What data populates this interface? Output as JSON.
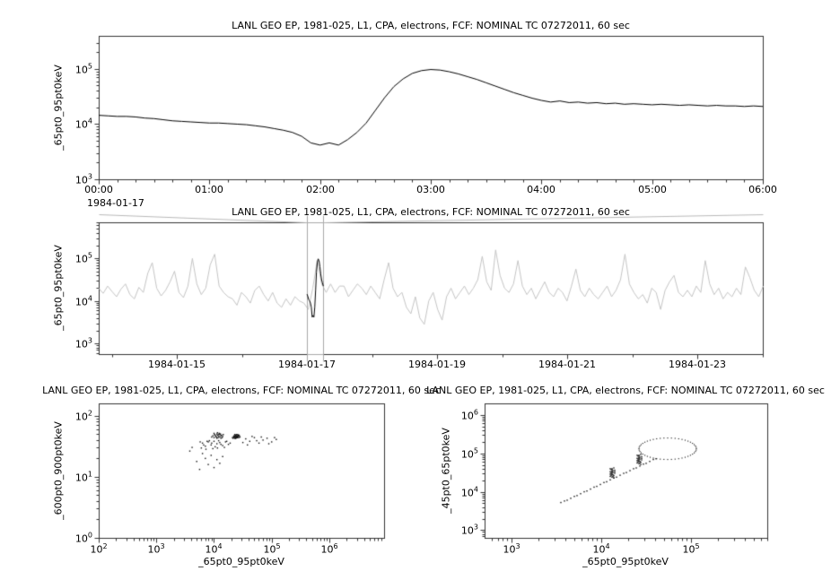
{
  "window": {
    "background": "#ffffff"
  },
  "colors": {
    "axis": "#333333",
    "series": "#000000",
    "context_series": "#c4c4c4",
    "selection": "#a8a8a8",
    "connector": "#b8b8b8",
    "scatter": "#111111"
  },
  "chart_data": [
    {
      "type": "line",
      "title": "LANL GEO EP, 1981-025, L1, CPA, electrons, FCF: NOMINAL TC 07272011, 60 sec",
      "ylabel": "_65pt0_95pt0keV",
      "xlabel": "",
      "x_axis": {
        "unit": "time-of-day",
        "date_label": "1984-01-17",
        "tick_labels": [
          "00:00",
          "01:00",
          "02:00",
          "03:00",
          "04:00",
          "05:00",
          "06:00"
        ],
        "tick_hours": [
          0,
          1,
          2,
          3,
          4,
          5,
          6
        ],
        "range_hours": [
          0,
          6
        ],
        "minor_step_hours": 0.16667
      },
      "y_axis": {
        "scale": "log",
        "range_log10": [
          3.0,
          5.6
        ],
        "tick_exponents": [
          3,
          4,
          5
        ]
      },
      "series": {
        "x_start_hours": 0,
        "x_step_hours": 0.083333,
        "log10_values": [
          4.16,
          4.15,
          4.14,
          4.14,
          4.13,
          4.11,
          4.1,
          4.08,
          4.06,
          4.05,
          4.04,
          4.03,
          4.02,
          4.02,
          4.01,
          4.0,
          3.99,
          3.97,
          3.95,
          3.92,
          3.89,
          3.85,
          3.78,
          3.66,
          3.62,
          3.66,
          3.62,
          3.72,
          3.85,
          4.02,
          4.25,
          4.48,
          4.68,
          4.82,
          4.92,
          4.97,
          4.99,
          4.98,
          4.95,
          4.91,
          4.86,
          4.81,
          4.75,
          4.69,
          4.63,
          4.57,
          4.52,
          4.47,
          4.43,
          4.4,
          4.42,
          4.39,
          4.4,
          4.38,
          4.39,
          4.37,
          4.38,
          4.36,
          4.37,
          4.36,
          4.35,
          4.36,
          4.35,
          4.34,
          4.35,
          4.34,
          4.33,
          4.34,
          4.33,
          4.33,
          4.32,
          4.33,
          4.32
        ]
      }
    },
    {
      "type": "line",
      "title": "LANL GEO EP, 1981-025, L1, CPA, electrons, FCF: NOMINAL TC 07272011, 60 sec",
      "ylabel": "_65pt0_95pt0keV",
      "xlabel": "",
      "x_axis": {
        "unit": "date",
        "tick_labels": [
          "1984-01-15",
          "1984-01-17",
          "1984-01-19",
          "1984-01-21",
          "1984-01-23"
        ],
        "tick_days": [
          15,
          17,
          19,
          21,
          23
        ],
        "range_days": [
          13.8,
          24.0
        ],
        "minor_step_days": 1
      },
      "y_axis": {
        "scale": "log",
        "range_log10": [
          2.75,
          5.85
        ],
        "tick_exponents": [
          3,
          4,
          5
        ]
      },
      "series": {
        "x_start_days": 13.8,
        "x_step_days": 0.0685,
        "log10_values": [
          4.3,
          4.18,
          4.35,
          4.22,
          4.1,
          4.28,
          4.4,
          4.15,
          4.05,
          4.32,
          4.2,
          4.65,
          4.9,
          4.3,
          4.12,
          4.25,
          4.45,
          4.7,
          4.2,
          4.08,
          4.35,
          5.0,
          4.4,
          4.15,
          4.3,
          4.85,
          5.1,
          4.35,
          4.2,
          4.1,
          4.05,
          3.9,
          4.2,
          4.1,
          3.95,
          4.25,
          4.35,
          4.15,
          4.0,
          4.2,
          3.95,
          3.85,
          4.05,
          3.9,
          4.1,
          4.0,
          3.95,
          3.8,
          4.3,
          4.95,
          4.4,
          4.2,
          4.4,
          4.2,
          4.35,
          4.35,
          4.1,
          4.25,
          4.4,
          4.3,
          4.15,
          4.35,
          4.2,
          4.05,
          4.5,
          4.9,
          4.3,
          4.1,
          4.2,
          3.85,
          3.7,
          4.1,
          3.6,
          3.45,
          4.0,
          4.2,
          3.8,
          3.55,
          4.1,
          4.3,
          4.05,
          4.2,
          4.35,
          4.15,
          4.3,
          4.5,
          5.05,
          4.45,
          4.25,
          5.2,
          4.6,
          4.3,
          4.2,
          4.4,
          4.95,
          4.35,
          4.15,
          4.3,
          4.05,
          4.25,
          4.45,
          4.2,
          4.1,
          4.3,
          4.2,
          4.0,
          4.35,
          4.75,
          4.25,
          4.1,
          4.3,
          4.15,
          4.05,
          4.2,
          4.35,
          4.1,
          4.25,
          4.5,
          5.1,
          4.4,
          4.2,
          4.05,
          4.15,
          3.95,
          4.3,
          4.2,
          3.8,
          4.25,
          4.45,
          4.6,
          4.2,
          4.1,
          4.25,
          4.1,
          4.35,
          4.2,
          4.95,
          4.4,
          4.15,
          4.3,
          4.05,
          4.2,
          4.1,
          4.3,
          4.15,
          4.8,
          4.55,
          4.25,
          4.1,
          4.35
        ]
      },
      "highlight_series": {
        "x_start_days": 17.0,
        "x_step_days": 0.01316,
        "log10_values": [
          4.16,
          4.1,
          4.03,
          4.0,
          3.95,
          3.85,
          3.62,
          3.66,
          3.62,
          3.85,
          4.25,
          4.68,
          4.92,
          4.99,
          4.95,
          4.81,
          4.63,
          4.5,
          4.42,
          4.35
        ]
      },
      "selection_box_days": [
        17.0,
        17.25
      ]
    },
    {
      "type": "scatter",
      "title": "LANL GEO EP, 1981-025, L1, CPA, electrons, FCF: NOMINAL TC 07272011, 60 sec",
      "ylabel": "_600pt0_900pt0keV",
      "xlabel": "_65pt0_95pt0keV",
      "x_axis": {
        "scale": "log",
        "range_log10": [
          2.0,
          6.95
        ],
        "tick_exponents": [
          2,
          3,
          4,
          5,
          6
        ]
      },
      "y_axis": {
        "scale": "log",
        "range_log10": [
          0.0,
          2.2
        ],
        "tick_exponents": [
          0,
          1,
          2
        ]
      },
      "points_log10": [
        [
          4.32,
          1.64
        ],
        [
          4.35,
          1.67
        ],
        [
          4.38,
          1.66
        ],
        [
          4.4,
          1.65
        ],
        [
          4.42,
          1.68
        ],
        [
          4.36,
          1.63
        ],
        [
          4.39,
          1.69
        ],
        [
          4.41,
          1.66
        ],
        [
          4.37,
          1.65
        ],
        [
          4.43,
          1.64
        ],
        [
          4.34,
          1.66
        ],
        [
          4.38,
          1.68
        ],
        [
          4.4,
          1.67
        ],
        [
          4.36,
          1.66
        ],
        [
          4.39,
          1.64
        ],
        [
          4.42,
          1.66
        ],
        [
          4.35,
          1.65
        ],
        [
          4.37,
          1.68
        ],
        [
          4.41,
          1.69
        ],
        [
          4.33,
          1.63
        ],
        [
          4.44,
          1.67
        ],
        [
          4.38,
          1.63
        ],
        [
          4.36,
          1.69
        ],
        [
          4.4,
          1.64
        ],
        [
          4.43,
          1.68
        ],
        [
          4.34,
          1.64
        ],
        [
          4.39,
          1.66
        ],
        [
          4.41,
          1.64
        ],
        [
          4.37,
          1.63
        ],
        [
          4.45,
          1.65
        ],
        [
          4.02,
          1.68
        ],
        [
          4.05,
          1.7
        ],
        [
          4.08,
          1.66
        ],
        [
          4.1,
          1.69
        ],
        [
          4.0,
          1.64
        ],
        [
          4.06,
          1.72
        ],
        [
          4.12,
          1.67
        ],
        [
          4.04,
          1.65
        ],
        [
          4.09,
          1.71
        ],
        [
          4.01,
          1.69
        ],
        [
          4.07,
          1.64
        ],
        [
          4.11,
          1.7
        ],
        [
          4.03,
          1.66
        ],
        [
          4.13,
          1.68
        ],
        [
          4.05,
          1.63
        ],
        [
          4.15,
          1.66
        ],
        [
          3.98,
          1.67
        ],
        [
          4.08,
          1.69
        ],
        [
          4.14,
          1.64
        ],
        [
          4.0,
          1.71
        ],
        [
          4.1,
          1.65
        ],
        [
          4.06,
          1.68
        ],
        [
          4.16,
          1.69
        ],
        [
          3.96,
          1.65
        ],
        [
          4.12,
          1.63
        ],
        [
          3.8,
          1.55
        ],
        [
          3.85,
          1.5
        ],
        [
          3.9,
          1.57
        ],
        [
          3.95,
          1.52
        ],
        [
          4.0,
          1.58
        ],
        [
          4.05,
          1.54
        ],
        [
          4.1,
          1.56
        ],
        [
          4.15,
          1.51
        ],
        [
          4.2,
          1.57
        ],
        [
          4.25,
          1.53
        ],
        [
          3.78,
          1.47
        ],
        [
          3.88,
          1.58
        ],
        [
          3.98,
          1.46
        ],
        [
          4.08,
          1.59
        ],
        [
          4.18,
          1.48
        ],
        [
          4.28,
          1.55
        ],
        [
          3.82,
          1.52
        ],
        [
          3.92,
          1.59
        ],
        [
          4.02,
          1.49
        ],
        [
          4.12,
          1.53
        ],
        [
          4.22,
          1.58
        ],
        [
          3.76,
          1.57
        ],
        [
          3.86,
          1.45
        ],
        [
          3.96,
          1.55
        ],
        [
          4.06,
          1.47
        ],
        [
          4.55,
          1.62
        ],
        [
          4.62,
          1.58
        ],
        [
          4.7,
          1.64
        ],
        [
          4.78,
          1.55
        ],
        [
          4.85,
          1.6
        ],
        [
          4.92,
          1.63
        ],
        [
          5.0,
          1.57
        ],
        [
          5.08,
          1.61
        ],
        [
          4.58,
          1.52
        ],
        [
          4.66,
          1.66
        ],
        [
          4.74,
          1.59
        ],
        [
          4.82,
          1.65
        ],
        [
          4.95,
          1.54
        ],
        [
          5.05,
          1.64
        ],
        [
          4.5,
          1.56
        ],
        [
          3.85,
          1.3
        ],
        [
          3.9,
          1.2
        ],
        [
          3.95,
          1.35
        ],
        [
          4.0,
          1.15
        ],
        [
          4.05,
          1.28
        ],
        [
          3.8,
          1.38
        ],
        [
          4.1,
          1.22
        ],
        [
          3.75,
          1.12
        ],
        [
          4.15,
          1.33
        ],
        [
          3.7,
          1.25
        ],
        [
          3.62,
          1.48
        ],
        [
          3.58,
          1.42
        ]
      ]
    },
    {
      "type": "scatter",
      "title": "LANL GEO EP, 1981-025, L1, CPA, electrons, FCF: NOMINAL TC 07272011, 60 sec",
      "ylabel": "_45pt0_65pt0keV",
      "xlabel": "_65pt0_95pt0keV",
      "x_axis": {
        "scale": "log",
        "range_log10": [
          2.7,
          5.85
        ],
        "tick_exponents": [
          3,
          4,
          5
        ]
      },
      "y_axis": {
        "scale": "log",
        "range_log10": [
          2.8,
          6.3
        ],
        "tick_exponents": [
          3,
          4,
          5,
          6
        ]
      },
      "points_log10": [
        [
          3.55,
          3.72
        ],
        [
          3.59,
          3.76
        ],
        [
          3.62,
          3.78
        ],
        [
          3.66,
          3.83
        ],
        [
          3.7,
          3.88
        ],
        [
          3.73,
          3.9
        ],
        [
          3.77,
          3.95
        ],
        [
          3.81,
          4.0
        ],
        [
          3.84,
          4.02
        ],
        [
          3.88,
          4.07
        ],
        [
          3.92,
          4.12
        ],
        [
          3.95,
          4.14
        ],
        [
          3.99,
          4.19
        ],
        [
          4.03,
          4.24
        ],
        [
          4.06,
          4.26
        ],
        [
          4.1,
          4.31
        ],
        [
          4.14,
          4.36
        ],
        [
          4.17,
          4.38
        ],
        [
          4.21,
          4.43
        ],
        [
          4.25,
          4.48
        ],
        [
          4.28,
          4.5
        ],
        [
          4.32,
          4.55
        ],
        [
          4.36,
          4.6
        ],
        [
          4.39,
          4.62
        ],
        [
          4.43,
          4.67
        ],
        [
          4.47,
          4.72
        ],
        [
          4.5,
          4.74
        ],
        [
          4.54,
          4.79
        ],
        [
          4.58,
          4.84
        ],
        [
          4.61,
          4.86
        ],
        [
          4.1,
          4.4
        ],
        [
          4.12,
          4.45
        ],
        [
          4.11,
          4.5
        ],
        [
          4.13,
          4.55
        ],
        [
          4.12,
          4.6
        ],
        [
          4.14,
          4.42
        ],
        [
          4.1,
          4.52
        ],
        [
          4.12,
          4.38
        ],
        [
          4.15,
          4.48
        ],
        [
          4.11,
          4.58
        ],
        [
          4.13,
          4.44
        ],
        [
          4.12,
          4.54
        ],
        [
          4.14,
          4.62
        ],
        [
          4.1,
          4.46
        ],
        [
          4.13,
          4.5
        ],
        [
          4.11,
          4.42
        ],
        [
          4.15,
          4.56
        ],
        [
          4.12,
          4.48
        ],
        [
          4.14,
          4.36
        ],
        [
          4.1,
          4.6
        ],
        [
          4.12,
          4.52
        ],
        [
          4.13,
          4.4
        ],
        [
          4.11,
          4.46
        ],
        [
          4.15,
          4.52
        ],
        [
          4.12,
          4.58
        ],
        [
          4.4,
          4.75
        ],
        [
          4.42,
          4.8
        ],
        [
          4.41,
          4.85
        ],
        [
          4.43,
          4.9
        ],
        [
          4.42,
          4.95
        ],
        [
          4.44,
          4.77
        ],
        [
          4.4,
          4.87
        ],
        [
          4.42,
          4.73
        ],
        [
          4.45,
          4.83
        ],
        [
          4.41,
          4.93
        ],
        [
          4.43,
          4.79
        ],
        [
          4.42,
          4.89
        ],
        [
          4.44,
          4.97
        ],
        [
          4.4,
          4.81
        ],
        [
          4.43,
          4.85
        ],
        [
          4.41,
          4.77
        ],
        [
          4.45,
          4.91
        ],
        [
          4.42,
          4.83
        ],
        [
          4.44,
          4.71
        ],
        [
          4.4,
          4.95
        ],
        [
          4.42,
          4.87
        ],
        [
          4.43,
          4.75
        ],
        [
          4.41,
          4.81
        ],
        [
          4.45,
          4.87
        ],
        [
          4.42,
          4.93
        ]
      ],
      "loop": {
        "cx": 4.74,
        "cy": 5.12,
        "rx": 0.32,
        "ry": 0.28,
        "n": 48
      }
    }
  ]
}
